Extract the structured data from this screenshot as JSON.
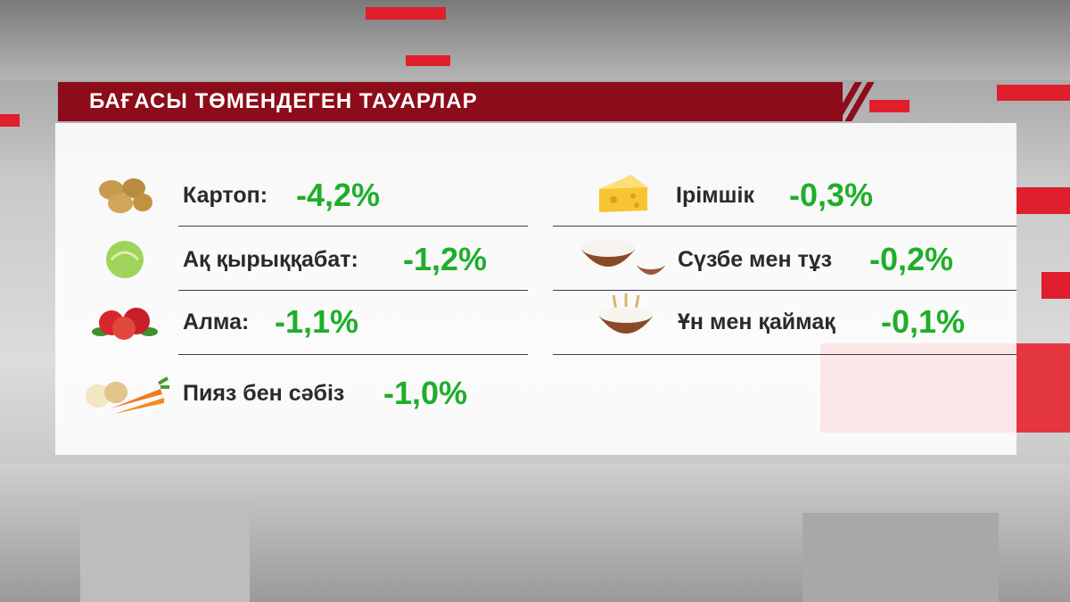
{
  "header": {
    "title": "БАҒАСЫ ТӨМЕНДЕГЕН ТАУАРЛАР"
  },
  "left_items": [
    {
      "name": "Картоп:",
      "change": "-4,2%"
    },
    {
      "name": "Ақ қырыққабат:",
      "change": "-1,2%"
    },
    {
      "name": "Алма:",
      "change": "-1,1%"
    },
    {
      "name": "Пияз бен сәбіз",
      "change": "-1,0%"
    }
  ],
  "right_items": [
    {
      "name": "Ірімшік",
      "change": "-0,3%"
    },
    {
      "name": "Сүзбе мен тұз",
      "change": "-0,2%"
    },
    {
      "name": "Ұн мен қаймақ",
      "change": "-0,1%"
    }
  ]
}
